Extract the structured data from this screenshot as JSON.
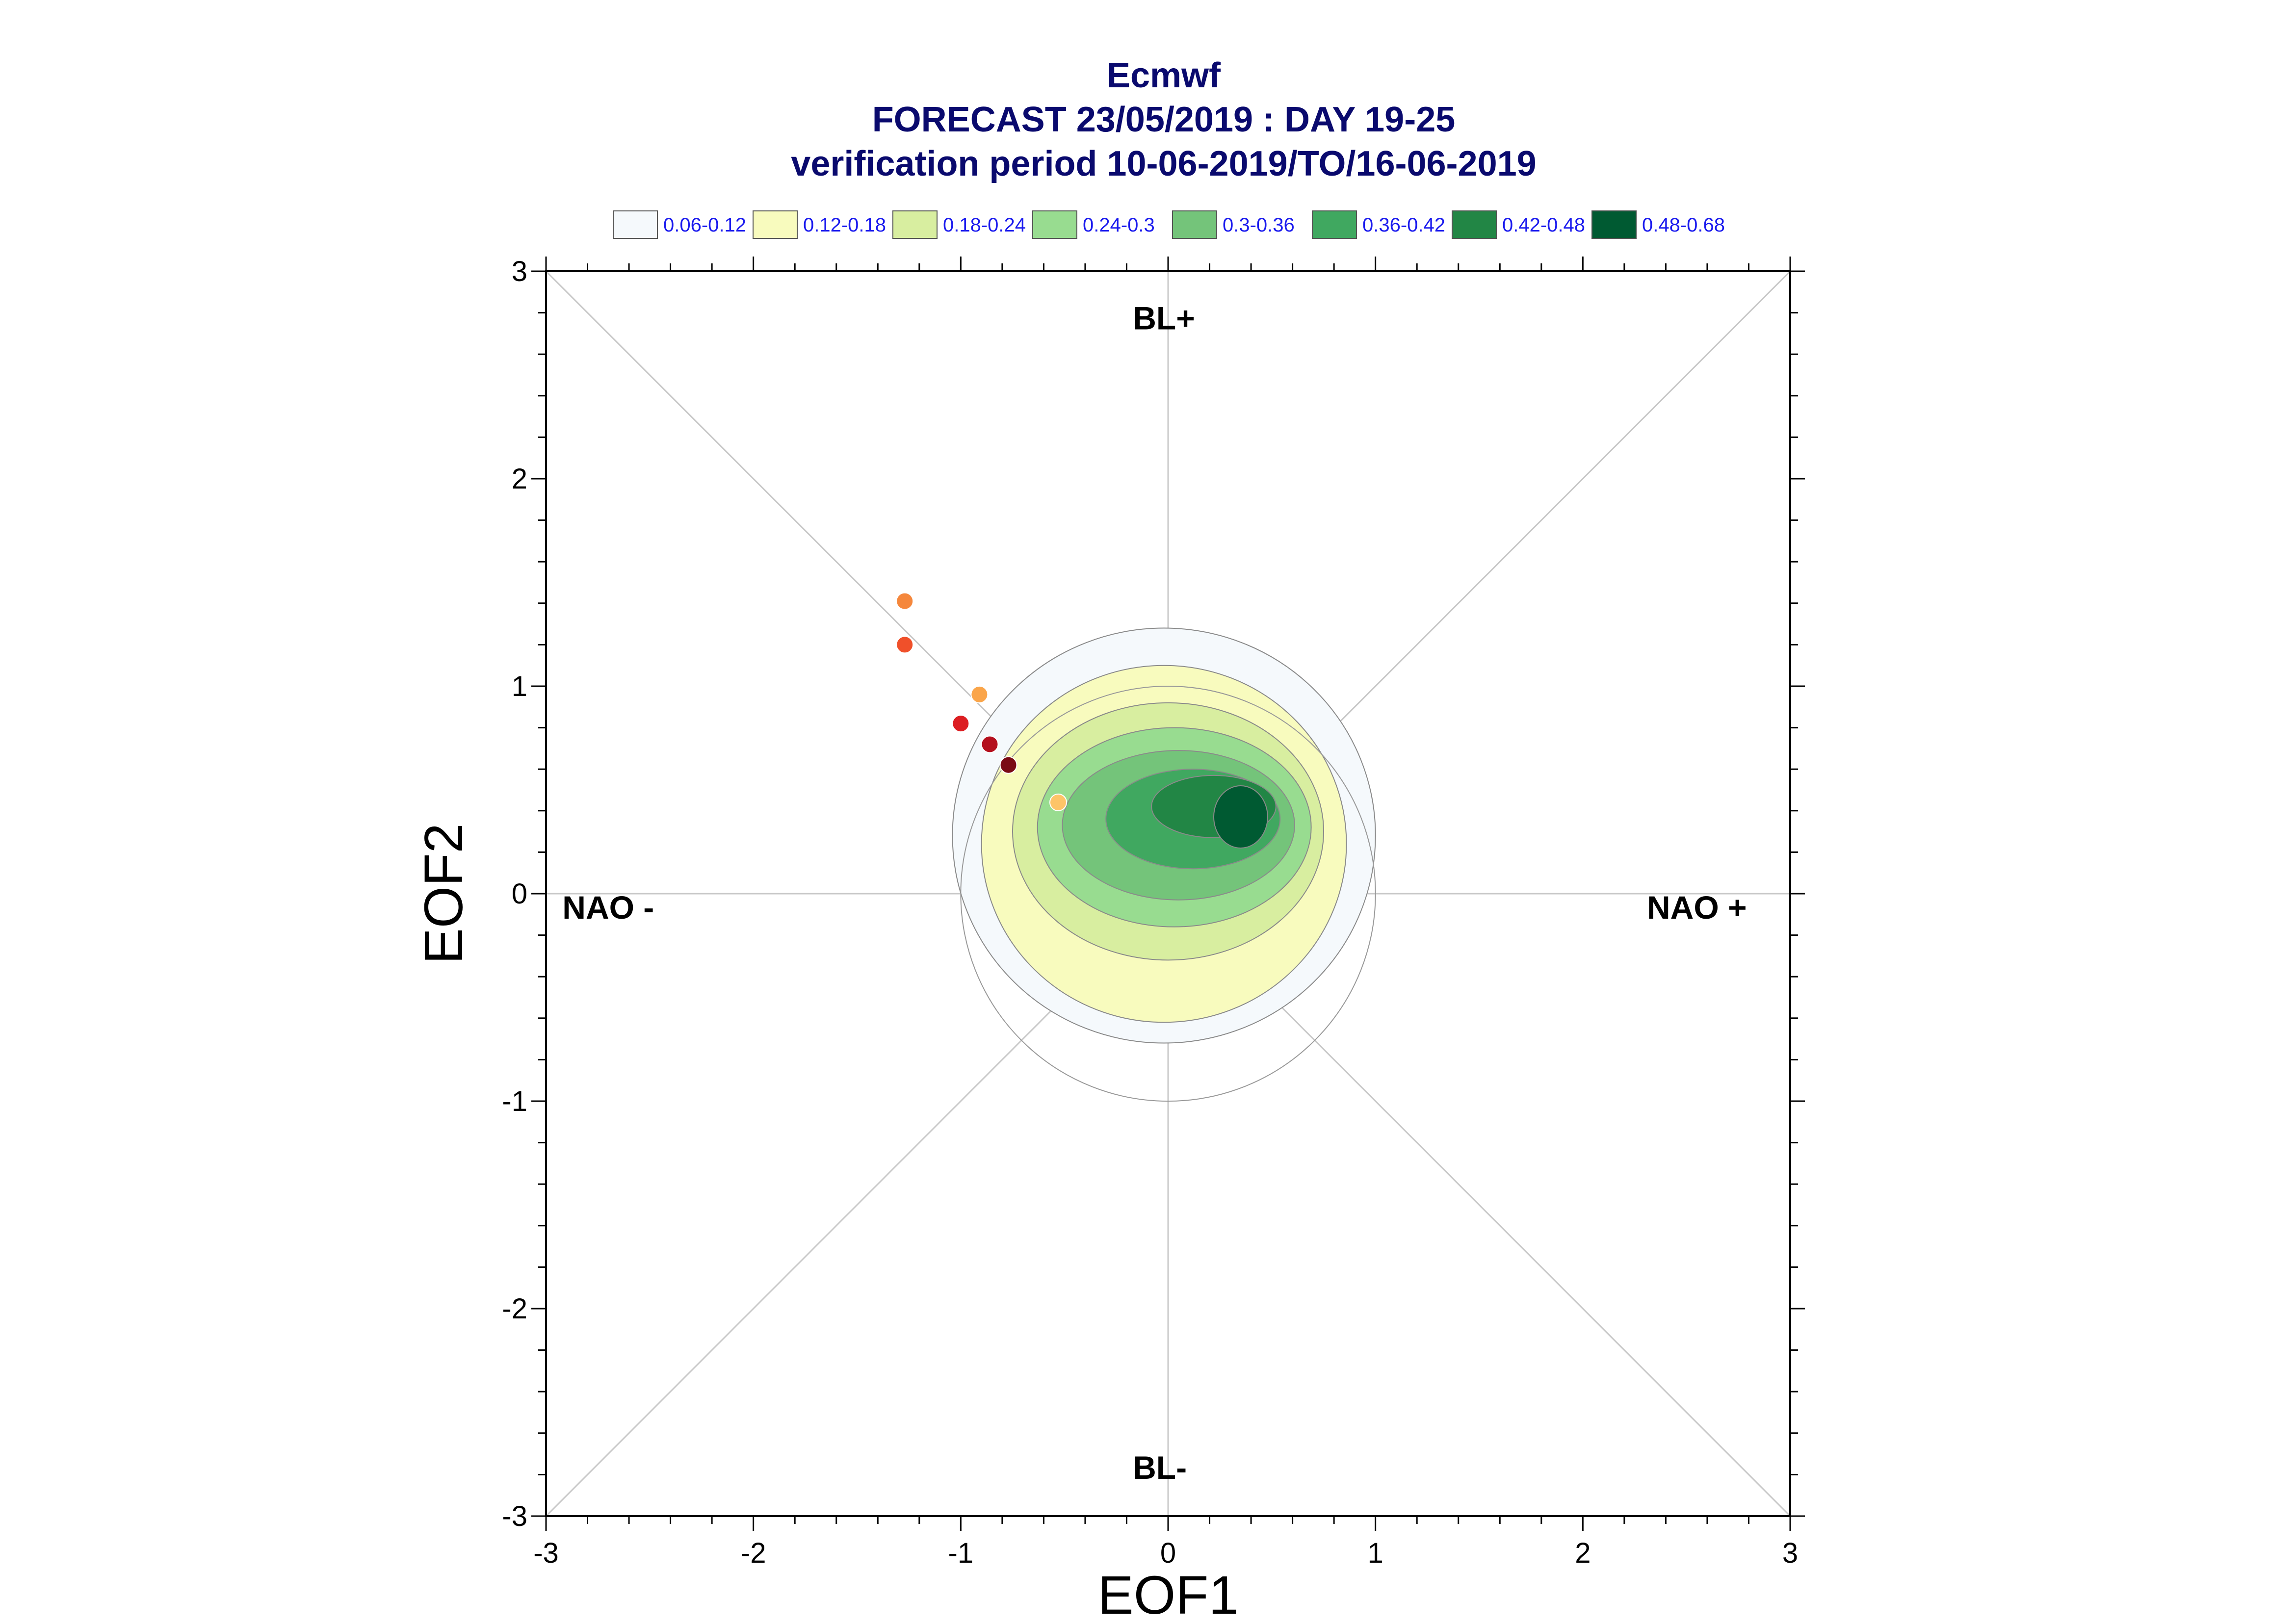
{
  "chart_data": {
    "type": "scatter",
    "title_lines": [
      "Ecmwf",
      "FORECAST 23/05/2019 : DAY 19-25",
      "verification period 10-06-2019/TO/16-06-2019"
    ],
    "xlabel": "EOF1",
    "ylabel": "EOF2",
    "xlim": [
      -3,
      3
    ],
    "ylim": [
      -3,
      3
    ],
    "xticks": [
      -3,
      -2,
      -1,
      0,
      1,
      2,
      3
    ],
    "yticks": [
      -3,
      -2,
      -1,
      0,
      1,
      2,
      3
    ],
    "x_tick_labels": [
      "-3",
      "-2",
      "-1",
      "0",
      "1",
      "2",
      "3"
    ],
    "y_tick_labels": [
      "-3",
      "-2",
      "-1",
      "0",
      "1",
      "2",
      "3"
    ],
    "regime_labels": {
      "top": "BL+",
      "bottom": "BL-",
      "left": "NAO -",
      "right": "NAO +"
    },
    "legend": [
      {
        "label": "0.06-0.12",
        "color": "#f5f9fc"
      },
      {
        "label": "0.12-0.18",
        "color": "#f8fbbe"
      },
      {
        "label": "0.18-0.24",
        "color": "#d8eea0"
      },
      {
        "label": "0.24-0.3",
        "color": "#98dc90"
      },
      {
        "label": "0.3-0.36",
        "color": "#74c47a"
      },
      {
        "label": "0.36-0.42",
        "color": "#40a860"
      },
      {
        "label": "0.42-0.48",
        "color": "#228645"
      },
      {
        "label": "0.48-0.68",
        "color": "#005a32"
      }
    ],
    "density_levels": [
      {
        "range": "0.06-0.12",
        "center": [
          -0.02,
          0.28
        ],
        "rx": 1.02,
        "ry": 1.0,
        "color": "#f5f9fc"
      },
      {
        "range": "0.12-0.18",
        "center": [
          -0.02,
          0.24
        ],
        "rx": 0.88,
        "ry": 0.86,
        "color": "#f8fbbe"
      },
      {
        "range": "0.18-0.24",
        "center": [
          0.0,
          0.3
        ],
        "rx": 0.75,
        "ry": 0.62,
        "color": "#d8eea0"
      },
      {
        "range": "0.24-0.3",
        "center": [
          0.03,
          0.32
        ],
        "rx": 0.66,
        "ry": 0.48,
        "color": "#98dc90"
      },
      {
        "range": "0.3-0.36",
        "center": [
          0.05,
          0.33
        ],
        "rx": 0.56,
        "ry": 0.36,
        "color": "#74c47a"
      },
      {
        "range": "0.36-0.42",
        "center": [
          0.12,
          0.36
        ],
        "rx": 0.42,
        "ry": 0.24,
        "color": "#40a860"
      },
      {
        "range": "0.42-0.48",
        "center": [
          0.22,
          0.42
        ],
        "rx": 0.3,
        "ry": 0.15,
        "color": "#228645"
      },
      {
        "range": "0.48-0.68",
        "center": [
          0.35,
          0.37
        ],
        "rx": 0.13,
        "ry": 0.15,
        "color": "#005a32"
      }
    ],
    "points": [
      {
        "x": -1.27,
        "y": 1.41,
        "color": "#f5873c"
      },
      {
        "x": -1.27,
        "y": 1.2,
        "color": "#f0502a"
      },
      {
        "x": -0.91,
        "y": 0.96,
        "color": "#faa54a"
      },
      {
        "x": -1.0,
        "y": 0.82,
        "color": "#dc1e22"
      },
      {
        "x": -0.86,
        "y": 0.72,
        "color": "#b4101e"
      },
      {
        "x": -0.77,
        "y": 0.62,
        "color": "#7a0a14"
      },
      {
        "x": -0.53,
        "y": 0.44,
        "color": "#fdc468"
      }
    ],
    "grid": true
  }
}
